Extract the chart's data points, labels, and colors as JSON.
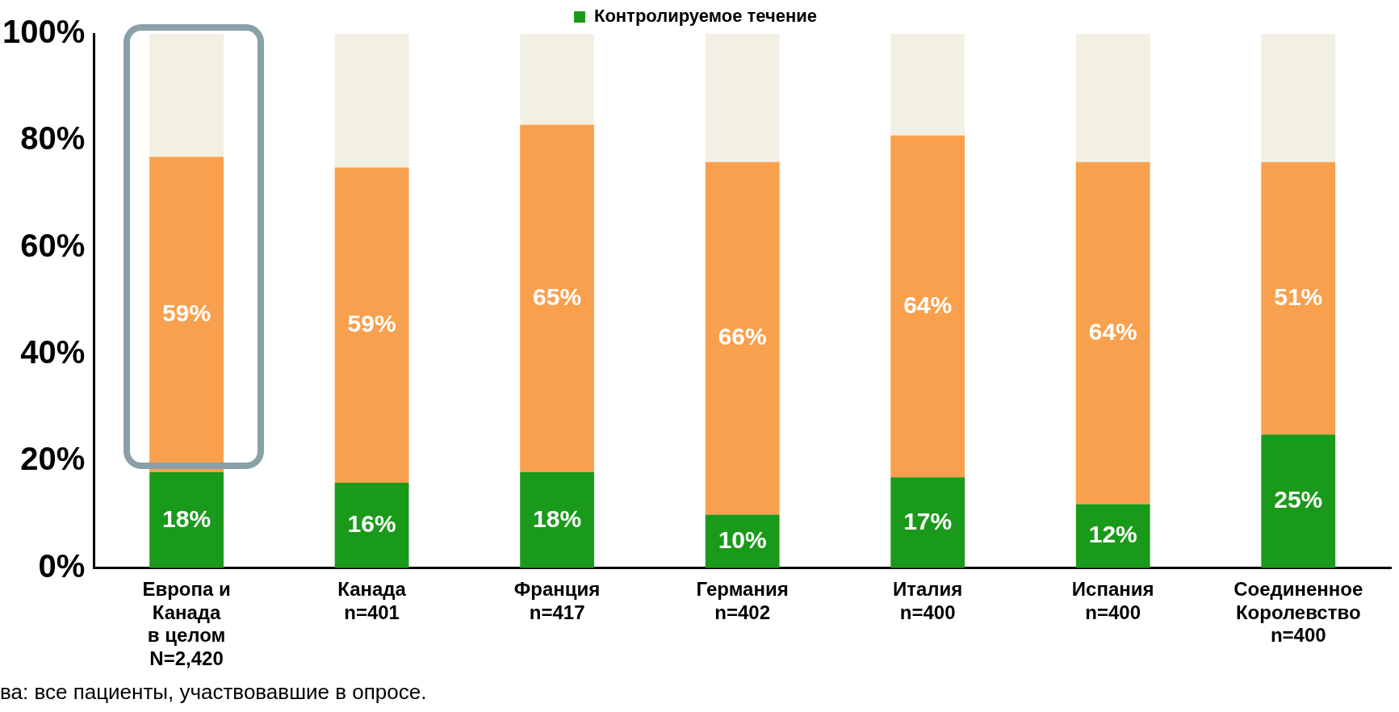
{
  "chart_data": {
    "type": "bar",
    "stacked": true,
    "categories": [
      "Европа и\nКанада\nв целом\nN=2,420",
      "Канада\nn=401",
      "Франция\nn=417",
      "Германия\nn=402",
      "Италия\nn=400",
      "Испания\nn=400",
      "Соединенное\nКоролевство\nn=400"
    ],
    "series": [
      {
        "name": "Контролируемое течение",
        "color": "#1a9a1a",
        "values": [
          18,
          16,
          18,
          10,
          17,
          12,
          25
        ],
        "value_labels": [
          "18%",
          "16%",
          "18%",
          "10%",
          "17%",
          "12%",
          "25%"
        ]
      },
      {
        "color": "#f9a04e",
        "values": [
          59,
          59,
          65,
          66,
          64,
          64,
          51
        ],
        "value_labels": [
          "59%",
          "59%",
          "65%",
          "66%",
          "64%",
          "64%",
          "51%"
        ]
      },
      {
        "color": "#f2f0e2",
        "values": [
          23,
          25,
          17,
          24,
          19,
          24,
          24
        ]
      }
    ],
    "ylim": [
      0,
      100
    ],
    "yticks": [
      {
        "value": 0,
        "label": "0%"
      },
      {
        "value": 20,
        "label": "20%"
      },
      {
        "value": 40,
        "label": "40%"
      },
      {
        "value": 60,
        "label": "60%"
      },
      {
        "value": 80,
        "label": "80%"
      },
      {
        "value": 100,
        "label": "100%"
      }
    ],
    "grid": false,
    "legend": "top right",
    "annotations": [
      "ва: все пациенты, участвовавшие в опросе."
    ]
  }
}
